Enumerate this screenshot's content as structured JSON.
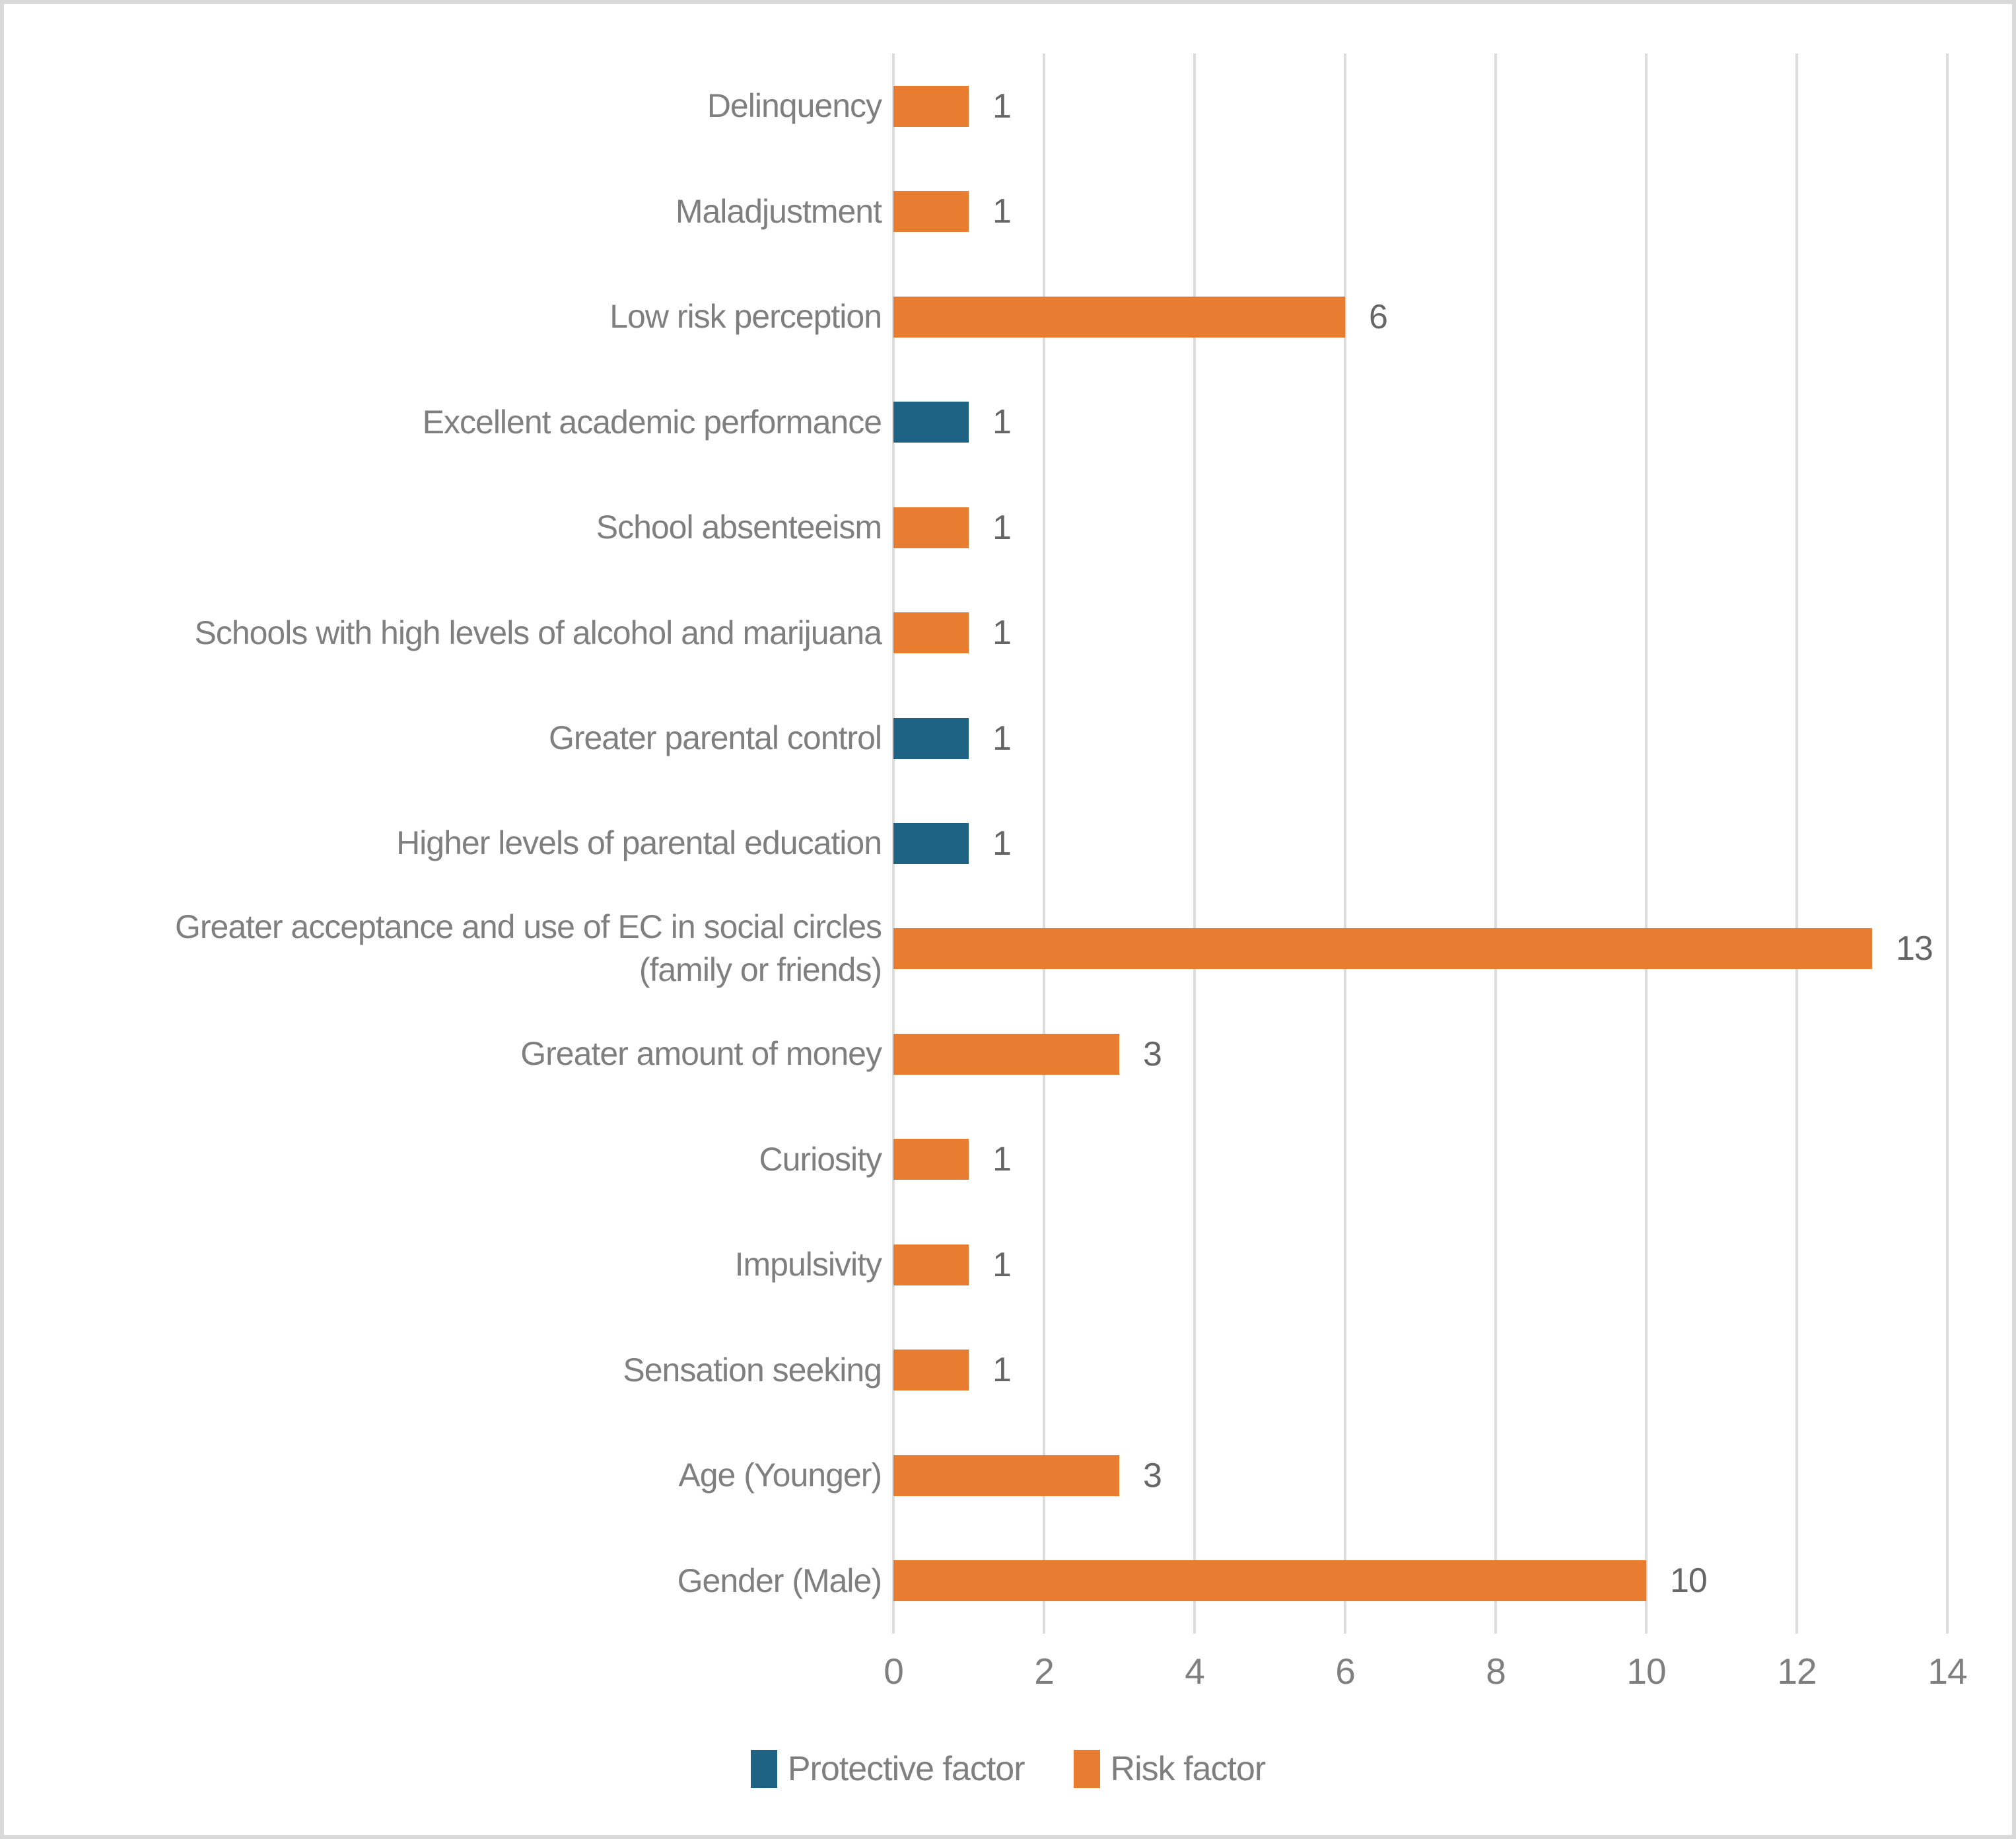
{
  "chart_data": {
    "type": "bar",
    "orientation": "horizontal",
    "title": "",
    "xlabel": "",
    "ylabel": "",
    "xlim": [
      0,
      14
    ],
    "x_ticks": [
      0,
      2,
      4,
      6,
      8,
      10,
      12,
      14
    ],
    "grid": true,
    "legend_position": "bottom",
    "categories": [
      "Delinquency",
      "Maladjustment",
      "Low risk perception",
      "Excellent academic performance",
      "School absenteeism",
      "Schools with high levels of alcohol and marijuana",
      "Greater parental control",
      "Higher levels of parental education",
      "Greater acceptance and use of EC in social circles\n(family or friends)",
      "Greater amount of money",
      "Curiosity",
      "Impulsivity",
      "Sensation seeking",
      "Age (Younger)",
      "Gender (Male)"
    ],
    "values": [
      1,
      1,
      6,
      1,
      1,
      1,
      1,
      1,
      13,
      3,
      1,
      1,
      1,
      3,
      10
    ],
    "factor_type": [
      "risk",
      "risk",
      "risk",
      "protective",
      "risk",
      "risk",
      "protective",
      "protective",
      "risk",
      "risk",
      "risk",
      "risk",
      "risk",
      "risk",
      "risk"
    ],
    "data_labels": [
      "1",
      "1",
      "6",
      "1",
      "1",
      "1",
      "1",
      "1",
      "13",
      "3",
      "1",
      "1",
      "1",
      "3",
      "10"
    ],
    "series_colors": {
      "protective": "#1f6384",
      "risk": "#e87d31"
    }
  },
  "legend": {
    "items": [
      {
        "label": "Protective factor",
        "color": "#1f6384"
      },
      {
        "label": "Risk factor",
        "color": "#e87d31"
      }
    ]
  },
  "colors": {
    "background": "#ffffff",
    "border": "#d9d9d9",
    "gridline": "#dcdcdc",
    "category_text": "#7f7f7f",
    "value_text": "#666666",
    "tick_text": "#7f7f7f",
    "legend_text": "#7f7f7f"
  }
}
